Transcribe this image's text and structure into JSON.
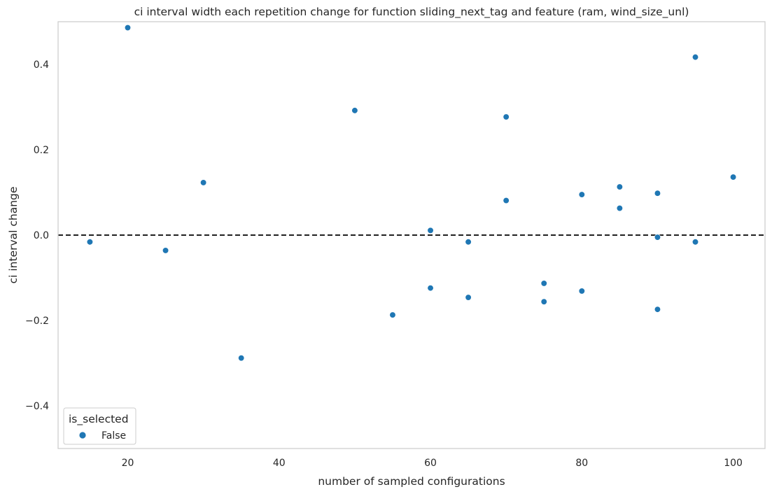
{
  "chart_data": {
    "type": "scatter",
    "title": "ci interval width each repetition change for function sliding_next_tag and feature (ram, wind_size_unl)",
    "xlabel": "number of sampled configurations",
    "ylabel": "ci interval change",
    "xlim": [
      10.8,
      104.2
    ],
    "ylim": [
      -0.5,
      0.5
    ],
    "x_ticks": [
      20,
      40,
      60,
      80,
      100
    ],
    "y_ticks": [
      0.4,
      0.2,
      0.0,
      -0.2,
      -0.4
    ],
    "x_tick_labels": [
      "20",
      "40",
      "60",
      "80",
      "100"
    ],
    "y_tick_labels": [
      "0.4",
      "0.2",
      "0.0",
      "−0.2",
      "−0.4"
    ],
    "grid": false,
    "reference_line": {
      "y": 0.0,
      "style": "dashed",
      "color": "#000000"
    },
    "legend": {
      "title": "is_selected",
      "entries": [
        "False"
      ],
      "position": "bottom-left"
    },
    "series": [
      {
        "name": "False",
        "color": "#1f77b4",
        "points": [
          {
            "x": 15,
            "y": -0.016
          },
          {
            "x": 20,
            "y": 0.486
          },
          {
            "x": 25,
            "y": -0.036
          },
          {
            "x": 30,
            "y": 0.123
          },
          {
            "x": 35,
            "y": -0.288
          },
          {
            "x": 50,
            "y": 0.292
          },
          {
            "x": 55,
            "y": -0.187
          },
          {
            "x": 60,
            "y": 0.011
          },
          {
            "x": 60,
            "y": -0.124
          },
          {
            "x": 65,
            "y": -0.016
          },
          {
            "x": 65,
            "y": -0.146
          },
          {
            "x": 70,
            "y": 0.277
          },
          {
            "x": 70,
            "y": 0.081
          },
          {
            "x": 75,
            "y": -0.113
          },
          {
            "x": 75,
            "y": -0.156
          },
          {
            "x": 80,
            "y": 0.095
          },
          {
            "x": 80,
            "y": -0.131
          },
          {
            "x": 85,
            "y": 0.113
          },
          {
            "x": 85,
            "y": 0.063
          },
          {
            "x": 90,
            "y": 0.098
          },
          {
            "x": 90,
            "y": -0.005
          },
          {
            "x": 90,
            "y": -0.174
          },
          {
            "x": 95,
            "y": 0.417
          },
          {
            "x": 95,
            "y": -0.016
          },
          {
            "x": 100,
            "y": 0.136
          }
        ]
      }
    ]
  }
}
